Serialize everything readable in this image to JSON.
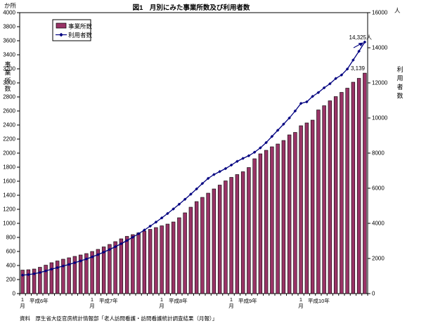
{
  "figure": {
    "title": "図1　月別にみた事業所数及び利用者数",
    "source_note": "資料　厚生省大臣官房統計情報部「老人訪問看護・訪問看護統計調査結果（月報）」"
  },
  "chart_data": {
    "type": "bar+line",
    "title": "図1　月別にみた事業所数及び利用者数",
    "left_axis": {
      "unit": "か所",
      "title": "事業所数",
      "min": 0,
      "max": 4000,
      "step": 200
    },
    "right_axis": {
      "unit": "人",
      "title": "利用者数",
      "min": 0,
      "max": 16000,
      "step": 2000
    },
    "x_tick_groups": [
      {
        "month": "1月",
        "year": "平成6年"
      },
      {
        "month": "1月",
        "year": "平成7年"
      },
      {
        "month": "1月",
        "year": "平成8年"
      },
      {
        "month": "1月",
        "year": "平成9年"
      },
      {
        "month": "1月",
        "year": "平成10年"
      }
    ],
    "months_per_group": 12,
    "series": [
      {
        "name": "事業所数",
        "type": "bar",
        "axis": "left",
        "color": "#993366",
        "values": [
          335,
          340,
          350,
          375,
          405,
          440,
          465,
          490,
          510,
          530,
          550,
          570,
          600,
          630,
          665,
          700,
          740,
          780,
          815,
          840,
          865,
          890,
          915,
          940,
          965,
          990,
          1020,
          1080,
          1150,
          1230,
          1310,
          1370,
          1430,
          1490,
          1545,
          1605,
          1655,
          1695,
          1735,
          1795,
          1920,
          1990,
          2040,
          2090,
          2130,
          2180,
          2260,
          2295,
          2390,
          2430,
          2470,
          2615,
          2675,
          2745,
          2805,
          2865,
          2925,
          3010,
          3065,
          3139
        ]
      },
      {
        "name": "利用者数",
        "type": "line",
        "axis": "right",
        "color": "#000080",
        "values": [
          1050,
          1080,
          1130,
          1200,
          1290,
          1390,
          1480,
          1570,
          1660,
          1760,
          1860,
          1970,
          2090,
          2220,
          2360,
          2510,
          2670,
          2840,
          3020,
          3210,
          3410,
          3620,
          3840,
          4070,
          4310,
          4560,
          4820,
          5090,
          5370,
          5660,
          5960,
          6270,
          6560,
          6780,
          6950,
          7120,
          7320,
          7530,
          7700,
          7850,
          8050,
          8300,
          8600,
          8950,
          9300,
          9650,
          10000,
          10400,
          10830,
          10920,
          11230,
          11450,
          11720,
          11950,
          12250,
          12450,
          12790,
          13300,
          13800,
          14325
        ]
      }
    ],
    "annotations": [
      {
        "text": "14,325人",
        "target": "last-line-point"
      },
      {
        "text": "3,139",
        "target": "last-bar"
      }
    ],
    "legend": {
      "entries": [
        "事業所数",
        "利用者数"
      ]
    }
  }
}
